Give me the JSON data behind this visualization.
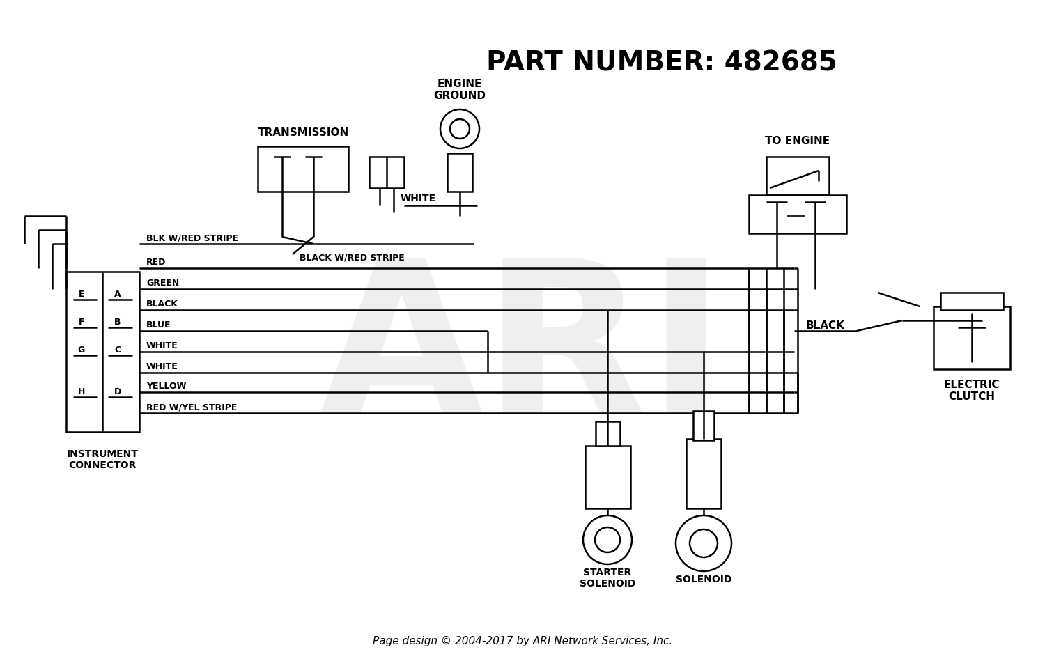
{
  "title": "PART NUMBER: 482685",
  "footer": "Page design © 2004-2017 by ARI Network Services, Inc.",
  "bg_color": "#ffffff",
  "lc": "#000000",
  "watermark": "ARI",
  "wire_labels": [
    "BLK W/RED STRIPE",
    "RED",
    "GREEN",
    "BLACK",
    "BLUE",
    "WHITE",
    "WHITE",
    "YELLOW",
    "RED W/YEL STRIPE"
  ],
  "connector_pins_left": [
    "E",
    "F",
    "G",
    "H"
  ],
  "connector_pins_right": [
    "A",
    "B",
    "C",
    "D"
  ],
  "label_transmission": "TRANSMISSION",
  "label_engine_ground": "ENGINE\nGROUND",
  "label_to_engine": "TO ENGINE",
  "label_electric_clutch": "ELECTRIC\nCLUTCH",
  "label_starter_solenoid": "STARTER\nSOLENOID",
  "label_solenoid": "SOLENOID",
  "label_instrument_connector": "INSTRUMENT\nCONNECTOR",
  "label_white": "WHITE",
  "label_black_red": "BLACK W/RED STRIPE",
  "label_black": "BLACK"
}
